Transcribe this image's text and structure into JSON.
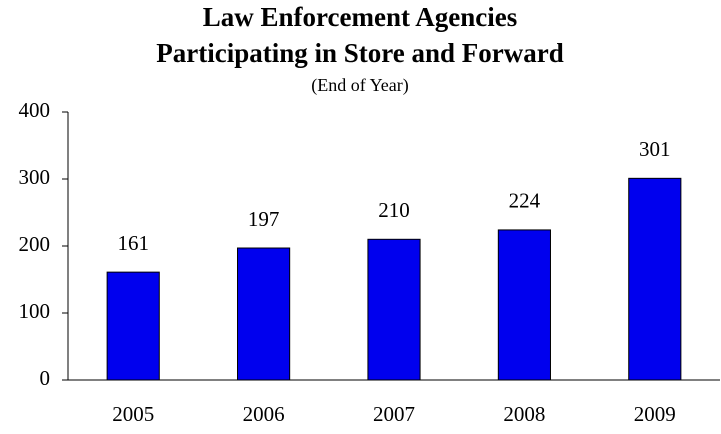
{
  "chart_data": {
    "type": "bar",
    "title": [
      "Law Enforcement Agencies",
      "Participating in Store and Forward"
    ],
    "subtitle": "(End of Year)",
    "categories": [
      "2005",
      "2006",
      "2007",
      "2008",
      "2009"
    ],
    "values": [
      161,
      197,
      210,
      224,
      301
    ],
    "color": "#0000ee",
    "ylim": [
      0,
      400
    ],
    "yticks": [
      0,
      100,
      200,
      300,
      400
    ],
    "grid": false
  }
}
